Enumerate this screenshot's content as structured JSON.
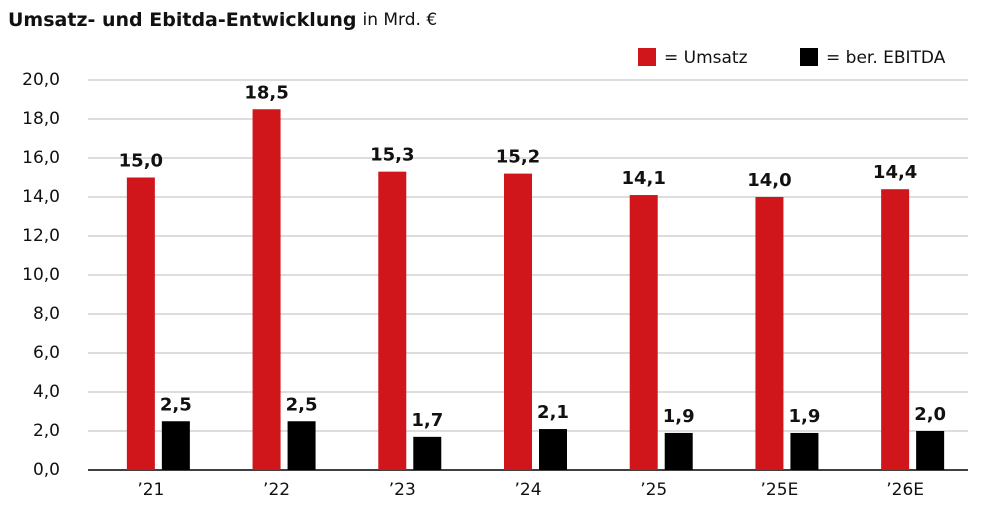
{
  "chart_data": {
    "type": "bar",
    "title": "Umsatz- und Ebitda-Entwicklung",
    "subtitle": "in Mrd. €",
    "categories": [
      "’21",
      "’22",
      "’23",
      "’24",
      "’25",
      "’25E",
      "’26E"
    ],
    "series": [
      {
        "name": "= Umsatz",
        "color": "#d0161b",
        "values": [
          15.0,
          18.5,
          15.3,
          15.2,
          14.1,
          14.0,
          14.4
        ],
        "value_labels": [
          "15,0",
          "18,5",
          "15,3",
          "15,2",
          "14,1",
          "14,0",
          "14,4"
        ]
      },
      {
        "name": "= ber. EBITDA",
        "color": "#000000",
        "values": [
          2.5,
          2.5,
          1.7,
          2.1,
          1.9,
          1.9,
          2.0
        ],
        "value_labels": [
          "2,5",
          "2,5",
          "1,7",
          "2,1",
          "1,9",
          "1,9",
          "2,0"
        ]
      }
    ],
    "ylim": [
      0,
      20
    ],
    "yticks": [
      {
        "value": 0,
        "label": "0,0"
      },
      {
        "value": 2,
        "label": "2,0"
      },
      {
        "value": 4,
        "label": "4,0"
      },
      {
        "value": 6,
        "label": "6,0"
      },
      {
        "value": 8,
        "label": "8,0"
      },
      {
        "value": 10,
        "label": "10,0"
      },
      {
        "value": 12,
        "label": "12,0"
      },
      {
        "value": 14,
        "label": "14,0"
      },
      {
        "value": 16,
        "label": "16,0"
      },
      {
        "value": 18,
        "label": "18,0"
      },
      {
        "value": 20,
        "label": "20,0"
      }
    ],
    "grid": true,
    "legend": "top-right"
  }
}
